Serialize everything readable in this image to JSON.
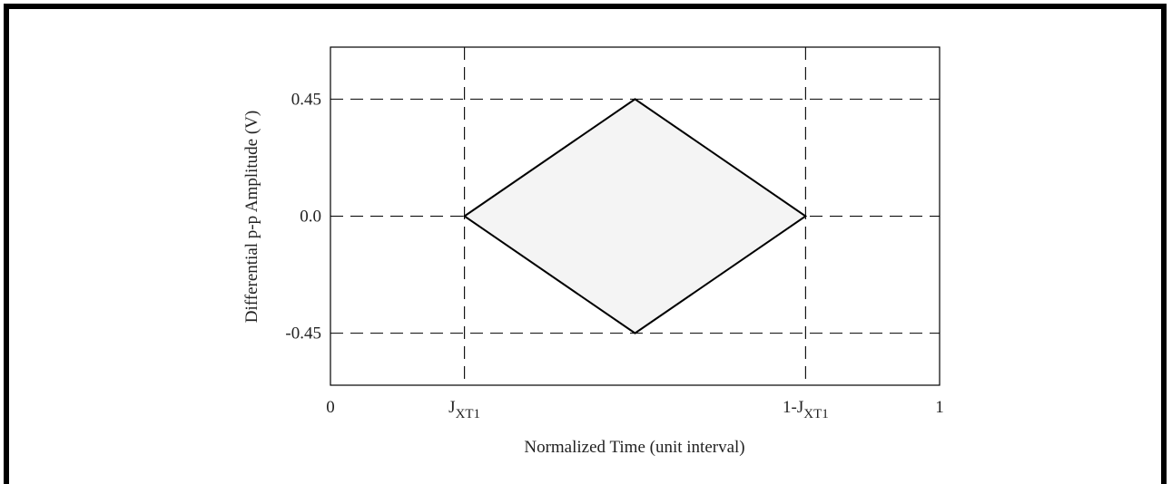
{
  "chart_data": {
    "type": "area",
    "title": "",
    "xlabel": "Normalized Time (unit interval)",
    "ylabel": "Differential p-p Amplitude (V)",
    "xlim": [
      0,
      1
    ],
    "ylim": [
      -0.65,
      0.65
    ],
    "x_ticks": [
      {
        "label": "0",
        "sub": ""
      },
      {
        "label": "J",
        "sub": "XT1"
      },
      {
        "label": "1-J",
        "sub": "XT1"
      },
      {
        "label": "1",
        "sub": ""
      }
    ],
    "y_ticks": [
      "0.45",
      "0.0",
      "-0.45"
    ],
    "y_tick_values": [
      0.45,
      0.0,
      -0.45
    ],
    "jxt1": 0.22,
    "eye_mask": {
      "vertices": [
        {
          "x": "J_XT1",
          "y": 0.0
        },
        {
          "x": 0.5,
          "y": 0.45
        },
        {
          "x": "1-J_XT1",
          "y": 0.0
        },
        {
          "x": 0.5,
          "y": -0.45
        }
      ],
      "fill": "#f4f4f4",
      "stroke": "#000000"
    },
    "grid": "dashed lines at J_XT1, 1-J_XT1 and y = 0.45, 0.0, -0.45"
  }
}
